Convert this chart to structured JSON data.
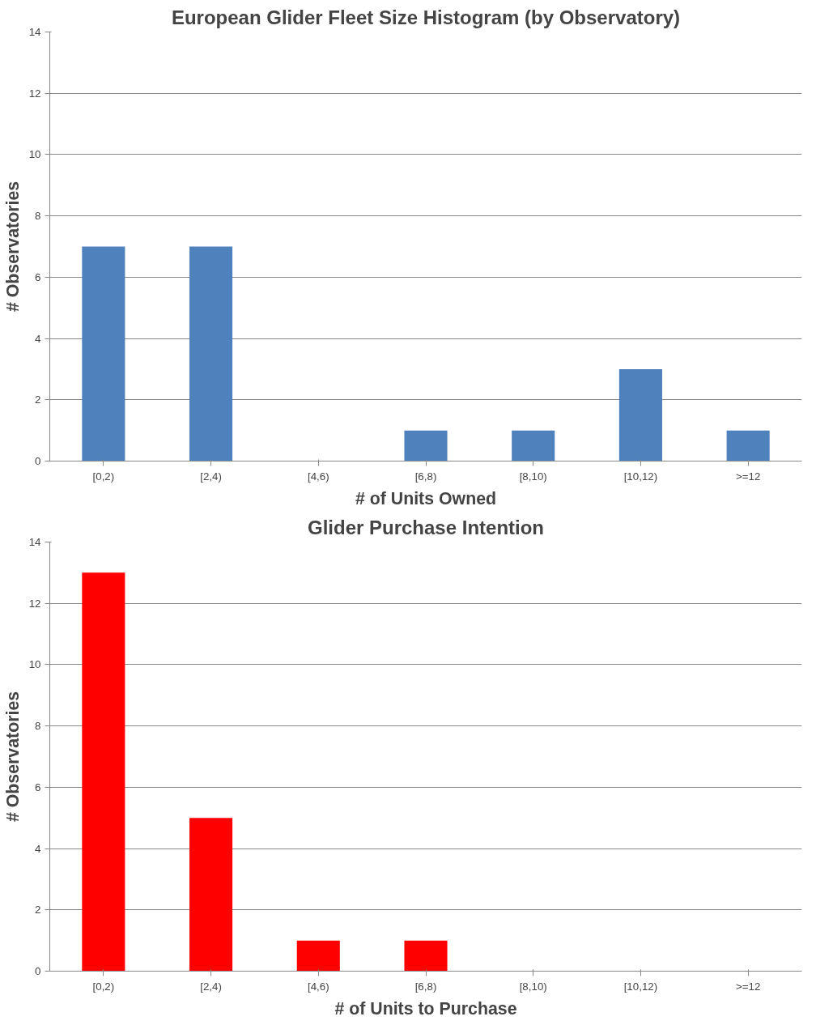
{
  "chart_data": [
    {
      "type": "bar",
      "title": "European Glider Fleet Size Histogram (by Observatory)",
      "xlabel": "# of Units Owned",
      "ylabel": "# Observatories",
      "categories": [
        "[0,2)",
        "[2,4)",
        "[4,6)",
        "[6,8)",
        "[8,10)",
        "[10,12)",
        ">=12"
      ],
      "values": [
        7,
        7,
        0,
        1,
        1,
        3,
        1
      ],
      "color": "#4f81bd",
      "ylim": [
        0,
        14
      ],
      "yticks": [
        0,
        2,
        4,
        6,
        8,
        10,
        12,
        14
      ],
      "grid": "y"
    },
    {
      "type": "bar",
      "title": "Glider Purchase Intention",
      "xlabel": "# of Units to Purchase",
      "ylabel": "# Observatories",
      "categories": [
        "[0,2)",
        "[2,4)",
        "[4,6)",
        "[6,8)",
        "[8,10)",
        "[10,12)",
        ">=12"
      ],
      "values": [
        13,
        5,
        1,
        1,
        0,
        0,
        0
      ],
      "color": "#ff0000",
      "ylim": [
        0,
        14
      ],
      "yticks": [
        0,
        2,
        4,
        6,
        8,
        10,
        12,
        14
      ],
      "grid": "y"
    }
  ]
}
